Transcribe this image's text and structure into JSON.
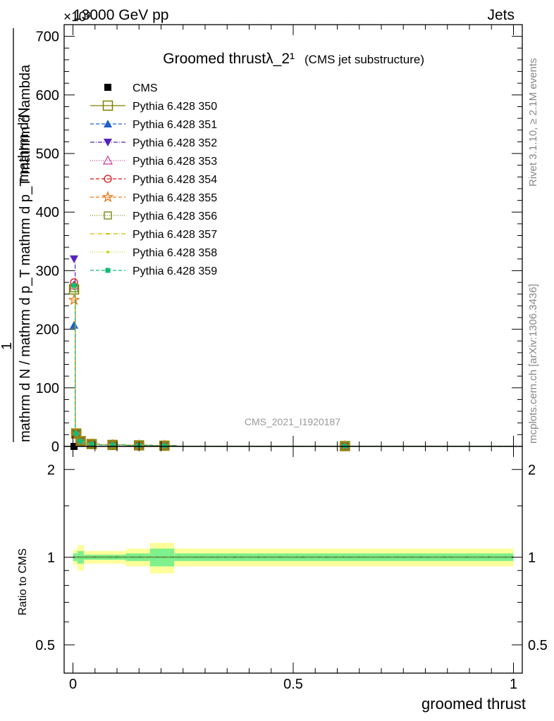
{
  "header": {
    "energy_label": "13000 GeV pp",
    "process_label": "Jets",
    "multiplier_label": "×10³"
  },
  "side_labels": {
    "rivet": "Rivet 3.1.10, ≥ 2.1M events",
    "mcplots": "mcplots.cern.ch [arXiv:1306.3436]"
  },
  "watermark": "CMS_2021_I1920187",
  "chart_data": [
    {
      "type": "line",
      "title": "Groomed thrustλ_2¹",
      "subtitle": "(CMS jet substructure)",
      "xlabel": "groomed thrust",
      "ylabel_lines": [
        "mathrm d²N",
        "1",
        "mathrm d N / mathrm d p_T mathrm d p_T mathrm d lambda"
      ],
      "xlim": [
        -0.02,
        1.02
      ],
      "ylim": [
        0,
        720
      ],
      "yticks": [
        "0",
        "100",
        "200",
        "300",
        "400",
        "500",
        "600",
        "700"
      ],
      "x_edges": [
        0.0,
        0.005,
        0.01,
        0.025,
        0.06,
        0.12,
        0.18,
        0.235,
        1.0
      ],
      "series": [
        {
          "name": "CMS",
          "color": "#000000",
          "marker": "square-filled",
          "dash": "",
          "values": [
            0,
            null,
            null,
            null,
            null,
            null,
            null,
            null
          ]
        },
        {
          "name": "Pythia 6.428 350",
          "color": "#808000",
          "marker": "square-open-large",
          "dash": "",
          "values": [
            268,
            22,
            9,
            4,
            2.5,
            1.8,
            1.2,
            0.5
          ]
        },
        {
          "name": "Pythia 6.428 351",
          "color": "#1f5fc8",
          "marker": "triangle-up-filled",
          "dash": "5,3",
          "values": [
            207,
            21,
            9,
            4.2,
            2.6,
            1.9,
            1.3,
            0.5
          ]
        },
        {
          "name": "Pythia 6.428 352",
          "color": "#5522bb",
          "marker": "triangle-down-filled",
          "dash": "6,2,1,2",
          "values": [
            320,
            22,
            9,
            4,
            2.5,
            1.8,
            1.2,
            0.5
          ]
        },
        {
          "name": "Pythia 6.428 353",
          "color": "#cc3399",
          "marker": "triangle-up-open",
          "dash": "1,2",
          "values": [
            275,
            22,
            9,
            4,
            2.5,
            1.8,
            1.2,
            0.5
          ]
        },
        {
          "name": "Pythia 6.428 354",
          "color": "#dd1111",
          "marker": "circle-open",
          "dash": "5,3",
          "values": [
            280,
            22,
            9,
            4,
            2.5,
            1.8,
            1.2,
            0.5
          ]
        },
        {
          "name": "Pythia 6.428 355",
          "color": "#ee7711",
          "marker": "star-open",
          "dash": "5,3",
          "values": [
            250,
            21,
            9,
            4,
            2.5,
            1.8,
            1.2,
            0.5
          ]
        },
        {
          "name": "Pythia 6.428 356",
          "color": "#7a8a10",
          "marker": "square-open",
          "dash": "1,2",
          "values": [
            270,
            22,
            9,
            4,
            2.5,
            1.8,
            1.2,
            0.5
          ]
        },
        {
          "name": "Pythia 6.428 357",
          "color": "#ccbb00",
          "marker": "tick",
          "dash": "6,2,1,2",
          "values": [
            272,
            22,
            9,
            4,
            2.5,
            1.8,
            1.2,
            0.5
          ]
        },
        {
          "name": "Pythia 6.428 358",
          "color": "#bbdd22",
          "marker": "dot",
          "dash": "1,2",
          "values": [
            274,
            22,
            9,
            4,
            2.5,
            1.8,
            1.2,
            0.5
          ]
        },
        {
          "name": "Pythia 6.428 359",
          "color": "#11bb77",
          "marker": "square-filled-small",
          "dash": "5,3",
          "values": [
            275,
            22,
            9,
            4,
            2.5,
            1.8,
            1.2,
            0.5
          ]
        }
      ],
      "legend_position": "top-left"
    },
    {
      "type": "line",
      "ylabel": "Ratio to CMS",
      "xlabel": "groomed thrust",
      "xlim": [
        -0.02,
        1.02
      ],
      "ylim": [
        0.4,
        2.4
      ],
      "log_y": true,
      "yticks": [
        0.5,
        1,
        2
      ],
      "yticklabels": [
        "0.5",
        "1",
        "2"
      ],
      "xticks": [
        0,
        0.5,
        1
      ],
      "xticklabels": [
        "0",
        "0.5",
        "1"
      ],
      "reference": 1,
      "band_edges": [
        0.0,
        0.01,
        0.025,
        0.12,
        0.175,
        0.23,
        1.0
      ],
      "band_inner": [
        0.03,
        0.05,
        0.02,
        0.03,
        0.07,
        0.03
      ],
      "band_outer": [
        0.06,
        0.1,
        0.05,
        0.07,
        0.12,
        0.07
      ],
      "inner_color": "#7ef08c",
      "outer_color": "#fefe9a"
    }
  ]
}
